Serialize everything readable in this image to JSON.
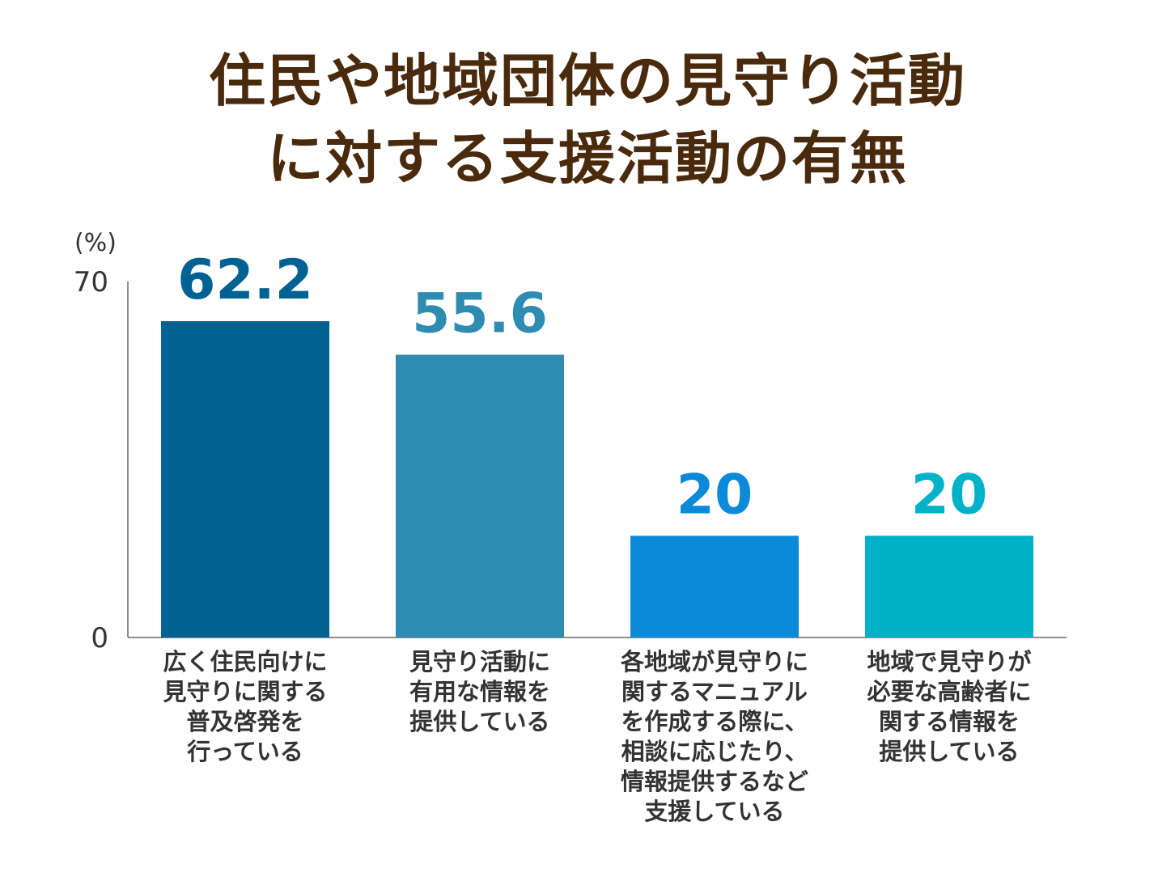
{
  "title": [
    "住民や地域団体の見守り活動",
    "に対する支援活動の有無"
  ],
  "colors": {
    "title": "#4a2a0c",
    "axis": "#666666",
    "tick_text": "#333333",
    "bars": [
      "#006193",
      "#2e8bb1",
      "#0a8ad9",
      "#00b2c9"
    ]
  },
  "chart_data": {
    "type": "bar",
    "unit": "(%)",
    "ylim": [
      0,
      70
    ],
    "yticks": [
      "70",
      "0"
    ],
    "grid": false,
    "categories": [
      [
        "広く住民向けに",
        "見守りに関する",
        "普及啓発を",
        "行っている"
      ],
      [
        "見守り活動に",
        "有用な情報を",
        "提供している"
      ],
      [
        "各地域が見守りに",
        "関するマニュアル",
        "を作成する際に、",
        "相談に応じたり、",
        "情報提供するなど",
        "支援している"
      ],
      [
        "地域で見守りが",
        "必要な高齢者に",
        "関する情報を",
        "提供している"
      ]
    ],
    "values": [
      62.2,
      55.6,
      20,
      20
    ],
    "value_labels": [
      "62.2",
      "55.6",
      "20",
      "20"
    ]
  }
}
